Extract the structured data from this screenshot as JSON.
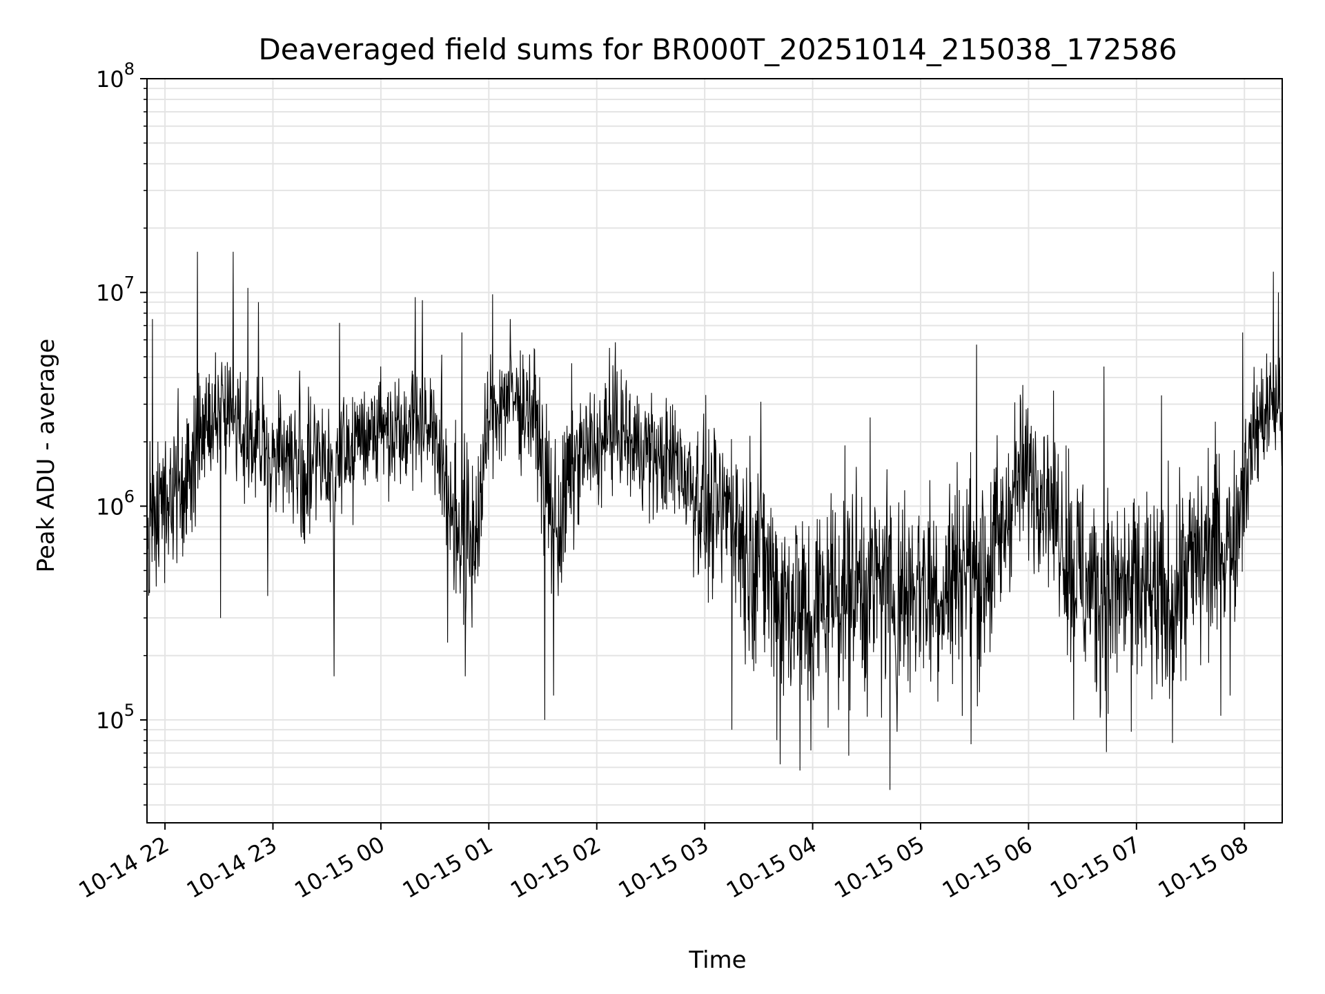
{
  "chart_data": {
    "type": "line",
    "title": "Deaveraged field sums for BR000T_20251014_215038_172586",
    "xlabel": "Time",
    "ylabel": "Peak ADU - average",
    "y_scale": "log",
    "ylim": [
      33000,
      100000000
    ],
    "xlim": [
      "2025-10-14 21:50",
      "2025-10-15 08:21"
    ],
    "grid": true,
    "line_color": "#000000",
    "x_ticks": [
      {
        "value": "2025-10-14 22:00",
        "label": "10-14 22"
      },
      {
        "value": "2025-10-14 23:00",
        "label": "10-14 23"
      },
      {
        "value": "2025-10-15 00:00",
        "label": "10-15 00"
      },
      {
        "value": "2025-10-15 01:00",
        "label": "10-15 01"
      },
      {
        "value": "2025-10-15 02:00",
        "label": "10-15 02"
      },
      {
        "value": "2025-10-15 03:00",
        "label": "10-15 03"
      },
      {
        "value": "2025-10-15 04:00",
        "label": "10-15 04"
      },
      {
        "value": "2025-10-15 05:00",
        "label": "10-15 05"
      },
      {
        "value": "2025-10-15 06:00",
        "label": "10-15 06"
      },
      {
        "value": "2025-10-15 07:00",
        "label": "10-15 07"
      },
      {
        "value": "2025-10-15 08:00",
        "label": "10-15 08"
      }
    ],
    "y_ticks": [
      {
        "value": 100000,
        "base": "10",
        "exp": "5"
      },
      {
        "value": 1000000,
        "base": "10",
        "exp": "6"
      },
      {
        "value": 10000000,
        "base": "10",
        "exp": "7"
      },
      {
        "value": 100000000,
        "base": "10",
        "exp": "8"
      }
    ],
    "series": [
      {
        "x": [
          "2025-10-14 21:50",
          "2025-10-14 21:55",
          "2025-10-14 22:00",
          "2025-10-14 22:05",
          "2025-10-14 22:10",
          "2025-10-14 22:15",
          "2025-10-14 22:20",
          "2025-10-14 22:25",
          "2025-10-14 22:30",
          "2025-10-14 22:35",
          "2025-10-14 22:40",
          "2025-10-14 22:45",
          "2025-10-14 22:50",
          "2025-10-14 22:55",
          "2025-10-14 23:00",
          "2025-10-14 23:05",
          "2025-10-14 23:10",
          "2025-10-14 23:15",
          "2025-10-14 23:20",
          "2025-10-14 23:25",
          "2025-10-14 23:30",
          "2025-10-14 23:35",
          "2025-10-14 23:40",
          "2025-10-14 23:45",
          "2025-10-14 23:50",
          "2025-10-14 23:55",
          "2025-10-15 00:00",
          "2025-10-15 00:05",
          "2025-10-15 00:10",
          "2025-10-15 00:15",
          "2025-10-15 00:20",
          "2025-10-15 00:25",
          "2025-10-15 00:30",
          "2025-10-15 00:35",
          "2025-10-15 00:40",
          "2025-10-15 00:45",
          "2025-10-15 00:50",
          "2025-10-15 00:55",
          "2025-10-15 01:00",
          "2025-10-15 01:05",
          "2025-10-15 01:10",
          "2025-10-15 01:15",
          "2025-10-15 01:20",
          "2025-10-15 01:25",
          "2025-10-15 01:30",
          "2025-10-15 01:35",
          "2025-10-15 01:40",
          "2025-10-15 01:45",
          "2025-10-15 01:50",
          "2025-10-15 01:55",
          "2025-10-15 02:00",
          "2025-10-15 02:05",
          "2025-10-15 02:10",
          "2025-10-15 02:15",
          "2025-10-15 02:20",
          "2025-10-15 02:25",
          "2025-10-15 02:30",
          "2025-10-15 02:35",
          "2025-10-15 02:40",
          "2025-10-15 02:45",
          "2025-10-15 02:50",
          "2025-10-15 02:55",
          "2025-10-15 03:00",
          "2025-10-15 03:05",
          "2025-10-15 03:10",
          "2025-10-15 03:15",
          "2025-10-15 03:20",
          "2025-10-15 03:25",
          "2025-10-15 03:30",
          "2025-10-15 03:35",
          "2025-10-15 03:40",
          "2025-10-15 03:45",
          "2025-10-15 03:50",
          "2025-10-15 03:55",
          "2025-10-15 04:00",
          "2025-10-15 04:05",
          "2025-10-15 04:10",
          "2025-10-15 04:15",
          "2025-10-15 04:20",
          "2025-10-15 04:25",
          "2025-10-15 04:30",
          "2025-10-15 04:35",
          "2025-10-15 04:40",
          "2025-10-15 04:45",
          "2025-10-15 04:50",
          "2025-10-15 04:55",
          "2025-10-15 05:00",
          "2025-10-15 05:05",
          "2025-10-15 05:10",
          "2025-10-15 05:15",
          "2025-10-15 05:20",
          "2025-10-15 05:25",
          "2025-10-15 05:30",
          "2025-10-15 05:35",
          "2025-10-15 05:40",
          "2025-10-15 05:45",
          "2025-10-15 05:50",
          "2025-10-15 05:55",
          "2025-10-15 06:00",
          "2025-10-15 06:05",
          "2025-10-15 06:10",
          "2025-10-15 06:15",
          "2025-10-15 06:20",
          "2025-10-15 06:25",
          "2025-10-15 06:30",
          "2025-10-15 06:35",
          "2025-10-15 06:40",
          "2025-10-15 06:45",
          "2025-10-15 06:50",
          "2025-10-15 06:55",
          "2025-10-15 07:00",
          "2025-10-15 07:05",
          "2025-10-15 07:10",
          "2025-10-15 07:15",
          "2025-10-15 07:20",
          "2025-10-15 07:25",
          "2025-10-15 07:30",
          "2025-10-15 07:35",
          "2025-10-15 07:40",
          "2025-10-15 07:45",
          "2025-10-15 07:50",
          "2025-10-15 07:55",
          "2025-10-15 08:00",
          "2025-10-15 08:05",
          "2025-10-15 08:10",
          "2025-10-15 08:15",
          "2025-10-15 08:20"
        ],
        "values": [
          700000,
          900000,
          1100000,
          1300000,
          1300000,
          1600000,
          2300000,
          2400000,
          2600000,
          2700000,
          2700000,
          2100000,
          1900000,
          1700000,
          1800000,
          1900000,
          1700000,
          1500000,
          1400000,
          1700000,
          1600000,
          1500000,
          1700000,
          1900000,
          2200000,
          2400000,
          2300000,
          2300000,
          2400000,
          2500000,
          2700000,
          2500000,
          2200000,
          1400000,
          1000000,
          700000,
          600000,
          1000000,
          2600000,
          3000000,
          3200000,
          3100000,
          3000000,
          2800000,
          1600000,
          900000,
          800000,
          1400000,
          1700000,
          1800000,
          1900000,
          2000000,
          2300000,
          2200000,
          1900000,
          1900000,
          1800000,
          1600000,
          1600000,
          1700000,
          1400000,
          1200000,
          1000000,
          900000,
          900000,
          1100000,
          700000,
          600000,
          700000,
          500000,
          400000,
          350000,
          400000,
          300000,
          300000,
          350000,
          400000,
          420000,
          450000,
          450000,
          400000,
          420000,
          450000,
          400000,
          380000,
          420000,
          450000,
          430000,
          400000,
          420000,
          500000,
          550000,
          450000,
          500000,
          600000,
          700000,
          1100000,
          1400000,
          1400000,
          1400000,
          1200000,
          900000,
          700000,
          550000,
          450000,
          400000,
          380000,
          380000,
          400000,
          430000,
          400000,
          380000,
          350000,
          320000,
          380000,
          450000,
          500000,
          550000,
          600000,
          650000,
          700000,
          750000,
          1400000,
          2100000,
          2600000,
          3000000,
          2800000
        ]
      }
    ],
    "texture_seed": 172586,
    "peaks": [
      [
        "2025-10-14 21:53",
        7500000
      ],
      [
        "2025-10-14 22:18",
        15500000
      ],
      [
        "2025-10-14 22:38",
        15500000
      ],
      [
        "2025-10-14 22:46",
        10500000
      ],
      [
        "2025-10-14 22:52",
        9000000
      ],
      [
        "2025-10-14 23:37",
        7200000
      ],
      [
        "2025-10-15 00:19",
        9500000
      ],
      [
        "2025-10-15 00:23",
        9200000
      ],
      [
        "2025-10-15 00:45",
        6500000
      ],
      [
        "2025-10-15 01:02",
        9800000
      ],
      [
        "2025-10-15 01:12",
        7500000
      ],
      [
        "2025-10-15 02:07",
        5500000
      ],
      [
        "2025-10-15 04:32",
        2600000
      ],
      [
        "2025-10-15 05:31",
        5700000
      ],
      [
        "2025-10-15 06:42",
        4500000
      ],
      [
        "2025-10-15 07:14",
        3300000
      ],
      [
        "2025-10-15 07:59",
        6500000
      ],
      [
        "2025-10-15 08:16",
        12500000
      ],
      [
        "2025-10-15 08:19",
        10000000
      ]
    ],
    "troughs": [
      [
        "2025-10-14 22:31",
        300000
      ],
      [
        "2025-10-14 22:57",
        380000
      ],
      [
        "2025-10-14 23:34",
        160000
      ],
      [
        "2025-10-15 00:37",
        230000
      ],
      [
        "2025-10-15 00:47",
        160000
      ],
      [
        "2025-10-15 01:31",
        100000
      ],
      [
        "2025-10-15 01:36",
        130000
      ],
      [
        "2025-10-15 03:15",
        90000
      ],
      [
        "2025-10-15 03:42",
        62000
      ],
      [
        "2025-10-15 03:53",
        58000
      ],
      [
        "2025-10-15 03:59",
        72000
      ],
      [
        "2025-10-15 04:20",
        68000
      ],
      [
        "2025-10-15 04:43",
        47000
      ],
      [
        "2025-10-15 04:47",
        88000
      ],
      [
        "2025-10-15 05:28",
        77000
      ],
      [
        "2025-10-15 06:25",
        100000
      ],
      [
        "2025-10-15 06:57",
        88000
      ],
      [
        "2025-10-15 07:20",
        78000
      ],
      [
        "2025-10-15 07:52",
        130000
      ]
    ]
  }
}
